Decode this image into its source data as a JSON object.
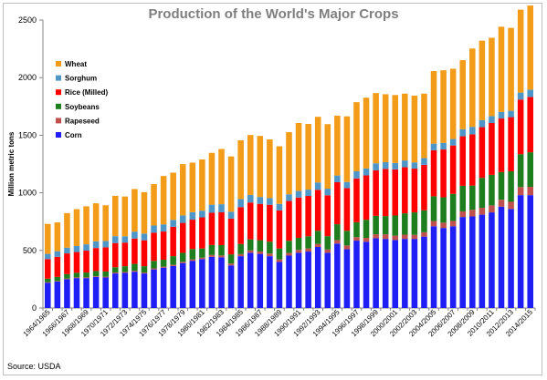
{
  "chart_data": {
    "type": "bar",
    "stacked": true,
    "title": "Production of the World's Major Crops",
    "xlabel": "",
    "ylabel": "Million metric tons",
    "ylim": [
      0,
      2500
    ],
    "yticks": [
      0,
      500,
      1000,
      1500,
      2000,
      2500
    ],
    "grid": false,
    "legend_position": "top-left",
    "source": "Source: USDA",
    "categories": [
      "1964/1965",
      "1965/1966",
      "1966/1967",
      "1967/1968",
      "1968/1969",
      "1969/1970",
      "1970/1971",
      "1971/1972",
      "1972/1973",
      "1973/1974",
      "1974/1975",
      "1975/1976",
      "1976/1977",
      "1977/1978",
      "1978/1979",
      "1979/1980",
      "1980/1981",
      "1981/1982",
      "1982/1983",
      "1983/1984",
      "1984/1985",
      "1985/1986",
      "1986/1987",
      "1987/1988",
      "1988/1989",
      "1989/1990",
      "1990/1991",
      "1991/1992",
      "1992/1993",
      "1993/1994",
      "1994/1995",
      "1995/1996",
      "1996/1997",
      "1997/1998",
      "1998/1999",
      "1999/2000",
      "2000/2001",
      "2001/2002",
      "2002/2003",
      "2003/2004",
      "2004/2005",
      "2005/2006",
      "2006/2007",
      "2007/2008",
      "2008/2009",
      "2009/2010",
      "2010/2011",
      "2011/2012",
      "2012/2013",
      "2013/2014",
      "2014/2015"
    ],
    "tick_labels_shown": [
      "1964/1965",
      "1966/1967",
      "1968/1969",
      "1970/1971",
      "1972/1973",
      "1974/1975",
      "1976/1977",
      "1978/1979",
      "1980/1981",
      "1982/1983",
      "1984/1985",
      "1986/1987",
      "1988/1989",
      "1990/1991",
      "1992/1993",
      "1994/1995",
      "1996/1997",
      "1998/1999",
      "2000/2001",
      "2002/2003",
      "2004/2005",
      "2006/2007",
      "2008/2009",
      "2010/2011",
      "2012/2013",
      "2014/2015"
    ],
    "series": [
      {
        "name": "Corn",
        "color": "#1f1ff5",
        "values": [
          220,
          230,
          250,
          260,
          260,
          270,
          265,
          300,
          305,
          315,
          300,
          335,
          350,
          365,
          390,
          410,
          425,
          445,
          440,
          370,
          450,
          480,
          470,
          450,
          400,
          455,
          480,
          490,
          530,
          480,
          560,
          510,
          585,
          575,
          605,
          600,
          590,
          600,
          600,
          620,
          710,
          695,
          710,
          790,
          795,
          810,
          830,
          880,
          860,
          980,
          980
        ]
      },
      {
        "name": "Rapeseed",
        "color": "#c0504d",
        "values": [
          5,
          5,
          6,
          6,
          6,
          6,
          7,
          8,
          8,
          8,
          8,
          9,
          9,
          10,
          11,
          12,
          12,
          15,
          16,
          16,
          18,
          20,
          21,
          23,
          22,
          23,
          25,
          27,
          26,
          28,
          30,
          33,
          30,
          34,
          35,
          40,
          38,
          37,
          35,
          38,
          45,
          46,
          46,
          49,
          58,
          60,
          61,
          60,
          62,
          70,
          72
        ]
      },
      {
        "name": "Soybeans",
        "color": "#1e7e1e",
        "values": [
          30,
          35,
          38,
          40,
          42,
          45,
          45,
          46,
          50,
          60,
          55,
          65,
          60,
          75,
          78,
          90,
          80,
          87,
          90,
          80,
          88,
          96,
          98,
          103,
          95,
          106,
          104,
          106,
          115,
          116,
          137,
          128,
          130,
          157,
          160,
          158,
          175,
          185,
          195,
          190,
          215,
          220,
          235,
          222,
          210,
          260,
          265,
          240,
          265,
          285,
          300
        ]
      },
      {
        "name": "Rice (Milled)",
        "color": "#ff0000",
        "values": [
          170,
          175,
          180,
          180,
          190,
          200,
          210,
          210,
          205,
          220,
          225,
          245,
          245,
          255,
          260,
          255,
          270,
          280,
          285,
          310,
          320,
          320,
          315,
          320,
          330,
          345,
          350,
          350,
          355,
          355,
          365,
          370,
          380,
          385,
          395,
          410,
          400,
          400,
          380,
          395,
          400,
          415,
          420,
          430,
          445,
          440,
          450,
          465,
          470,
          475,
          480
        ]
      },
      {
        "name": "Sorghum",
        "color": "#4f96c8",
        "values": [
          45,
          48,
          50,
          52,
          55,
          58,
          55,
          60,
          55,
          60,
          58,
          62,
          62,
          60,
          65,
          65,
          58,
          70,
          70,
          60,
          70,
          66,
          60,
          58,
          57,
          58,
          57,
          55,
          64,
          57,
          58,
          53,
          62,
          60,
          61,
          58,
          56,
          59,
          54,
          58,
          57,
          58,
          56,
          61,
          65,
          61,
          60,
          57,
          55,
          60,
          64
        ]
      },
      {
        "name": "Wheat",
        "color": "#f39c1a",
        "values": [
          260,
          250,
          300,
          320,
          330,
          330,
          310,
          350,
          345,
          370,
          360,
          360,
          420,
          410,
          445,
          430,
          445,
          450,
          480,
          480,
          510,
          520,
          530,
          510,
          500,
          540,
          590,
          570,
          570,
          560,
          520,
          570,
          600,
          615,
          610,
          590,
          590,
          580,
          580,
          560,
          630,
          630,
          610,
          600,
          680,
          690,
          680,
          740,
          720,
          720,
          730
        ]
      }
    ]
  }
}
